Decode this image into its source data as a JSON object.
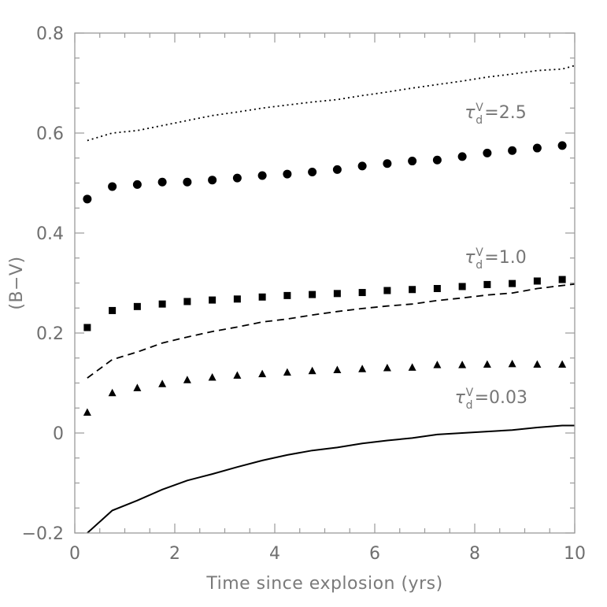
{
  "chart_data": {
    "type": "line",
    "xlabel": "Time since explosion (yrs)",
    "ylabel": "(B−V)",
    "xlim": [
      0,
      10
    ],
    "ylim": [
      -0.2,
      0.8
    ],
    "xticks": [
      0,
      2,
      4,
      6,
      8,
      10
    ],
    "xtick_labels": [
      "0",
      "2",
      "4",
      "6",
      "8",
      "10"
    ],
    "yticks": [
      -0.2,
      0,
      0.2,
      0.4,
      0.6,
      0.8
    ],
    "ytick_labels": [
      "−0.2",
      "0",
      "0.2",
      "0.4",
      "0.6",
      "0.8"
    ],
    "grid": false,
    "annotations": [
      {
        "tau": "τ",
        "sup": "V",
        "sub": "d",
        "value": "=2.5",
        "x": 7.8,
        "y": 0.63
      },
      {
        "tau": "τ",
        "sup": "V",
        "sub": "d",
        "value": "=1.0",
        "x": 7.8,
        "y": 0.34
      },
      {
        "tau": "τ",
        "sup": "V",
        "sub": "d",
        "value": "=0.03",
        "x": 7.6,
        "y": 0.06
      }
    ],
    "series": [
      {
        "style": "dotted",
        "x": [
          0.25,
          0.75,
          1.25,
          1.75,
          2.25,
          2.75,
          3.25,
          3.75,
          4.25,
          4.75,
          5.25,
          5.75,
          6.25,
          6.75,
          7.25,
          7.75,
          8.25,
          8.75,
          9.25,
          9.75,
          10.0
        ],
        "y": [
          0.585,
          0.6,
          0.605,
          0.615,
          0.625,
          0.635,
          0.642,
          0.65,
          0.656,
          0.662,
          0.667,
          0.675,
          0.682,
          0.69,
          0.697,
          0.704,
          0.712,
          0.718,
          0.725,
          0.728,
          0.735
        ]
      },
      {
        "style": "circles",
        "x": [
          0.25,
          0.75,
          1.25,
          1.75,
          2.25,
          2.75,
          3.25,
          3.75,
          4.25,
          4.75,
          5.25,
          5.75,
          6.25,
          6.75,
          7.25,
          7.75,
          8.25,
          8.75,
          9.25,
          9.75
        ],
        "y": [
          0.468,
          0.493,
          0.497,
          0.502,
          0.502,
          0.506,
          0.51,
          0.515,
          0.518,
          0.522,
          0.527,
          0.534,
          0.539,
          0.544,
          0.546,
          0.553,
          0.56,
          0.565,
          0.57,
          0.575
        ]
      },
      {
        "style": "squares",
        "x": [
          0.25,
          0.75,
          1.25,
          1.75,
          2.25,
          2.75,
          3.25,
          3.75,
          4.25,
          4.75,
          5.25,
          5.75,
          6.25,
          6.75,
          7.25,
          7.75,
          8.25,
          8.75,
          9.25,
          9.75
        ],
        "y": [
          0.211,
          0.245,
          0.253,
          0.258,
          0.263,
          0.266,
          0.268,
          0.272,
          0.275,
          0.277,
          0.279,
          0.281,
          0.285,
          0.287,
          0.289,
          0.293,
          0.297,
          0.299,
          0.304,
          0.307
        ]
      },
      {
        "style": "dashed",
        "x": [
          0.25,
          0.75,
          1.25,
          1.75,
          2.25,
          2.75,
          3.25,
          3.75,
          4.25,
          4.75,
          5.25,
          5.75,
          6.25,
          6.75,
          7.25,
          7.75,
          8.25,
          8.75,
          9.25,
          9.75,
          10.0
        ],
        "y": [
          0.11,
          0.147,
          0.162,
          0.18,
          0.192,
          0.203,
          0.212,
          0.222,
          0.228,
          0.236,
          0.243,
          0.249,
          0.254,
          0.258,
          0.265,
          0.27,
          0.276,
          0.28,
          0.289,
          0.295,
          0.298
        ]
      },
      {
        "style": "triangles",
        "x": [
          0.25,
          0.75,
          1.25,
          1.75,
          2.25,
          2.75,
          3.25,
          3.75,
          4.25,
          4.75,
          5.25,
          5.75,
          6.25,
          6.75,
          7.25,
          7.75,
          8.25,
          8.75,
          9.25,
          9.75
        ],
        "y": [
          0.041,
          0.08,
          0.09,
          0.098,
          0.106,
          0.111,
          0.115,
          0.118,
          0.121,
          0.124,
          0.126,
          0.128,
          0.13,
          0.131,
          0.136,
          0.136,
          0.137,
          0.138,
          0.137,
          0.137
        ]
      },
      {
        "style": "solid",
        "x": [
          0.25,
          0.75,
          1.25,
          1.75,
          2.25,
          2.75,
          3.25,
          3.75,
          4.25,
          4.75,
          5.25,
          5.75,
          6.25,
          6.75,
          7.25,
          7.75,
          8.25,
          8.75,
          9.25,
          9.75,
          10.0
        ],
        "y": [
          -0.2,
          -0.155,
          -0.135,
          -0.113,
          -0.095,
          -0.082,
          -0.068,
          -0.055,
          -0.044,
          -0.035,
          -0.029,
          -0.021,
          -0.015,
          -0.01,
          -0.003,
          0.0,
          0.003,
          0.006,
          0.011,
          0.015,
          0.015
        ]
      }
    ]
  }
}
